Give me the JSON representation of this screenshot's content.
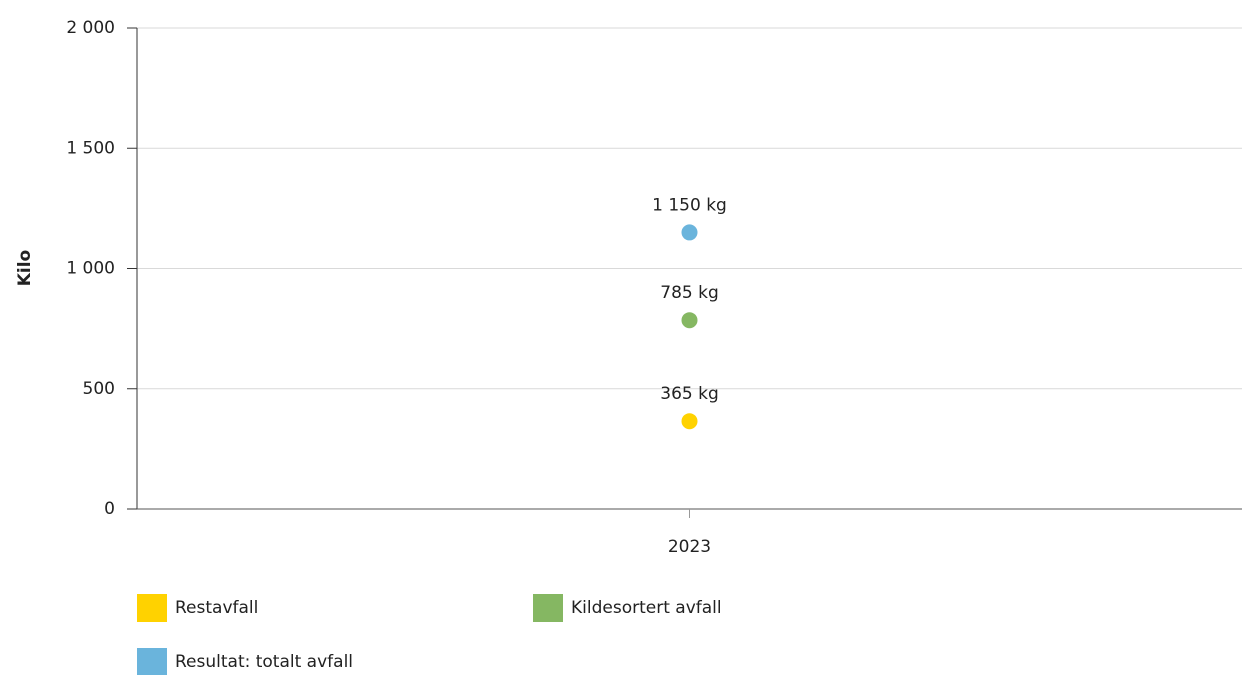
{
  "chart_data": {
    "type": "scatter",
    "y_label": "Kilo",
    "categories": [
      "2023"
    ],
    "series": [
      {
        "name": "Restavfall",
        "color": "#ffd200",
        "values": [
          365
        ],
        "value_labels": [
          "365 kg"
        ]
      },
      {
        "name": "Kildesortert avfall",
        "color": "#85b762",
        "values": [
          785
        ],
        "value_labels": [
          "785 kg"
        ]
      },
      {
        "name": "Resultat: totalt avfall",
        "color": "#6ab4dc",
        "values": [
          1150
        ],
        "value_labels": [
          "1 150 kg"
        ]
      }
    ],
    "ylim": [
      0,
      2000
    ],
    "yticks": [
      0,
      500,
      {
        "value": 1000,
        "label": "1 000"
      },
      {
        "value": 1500,
        "label": "1 500"
      },
      {
        "value": 2000,
        "label": "2 000"
      }
    ],
    "grid": true
  }
}
